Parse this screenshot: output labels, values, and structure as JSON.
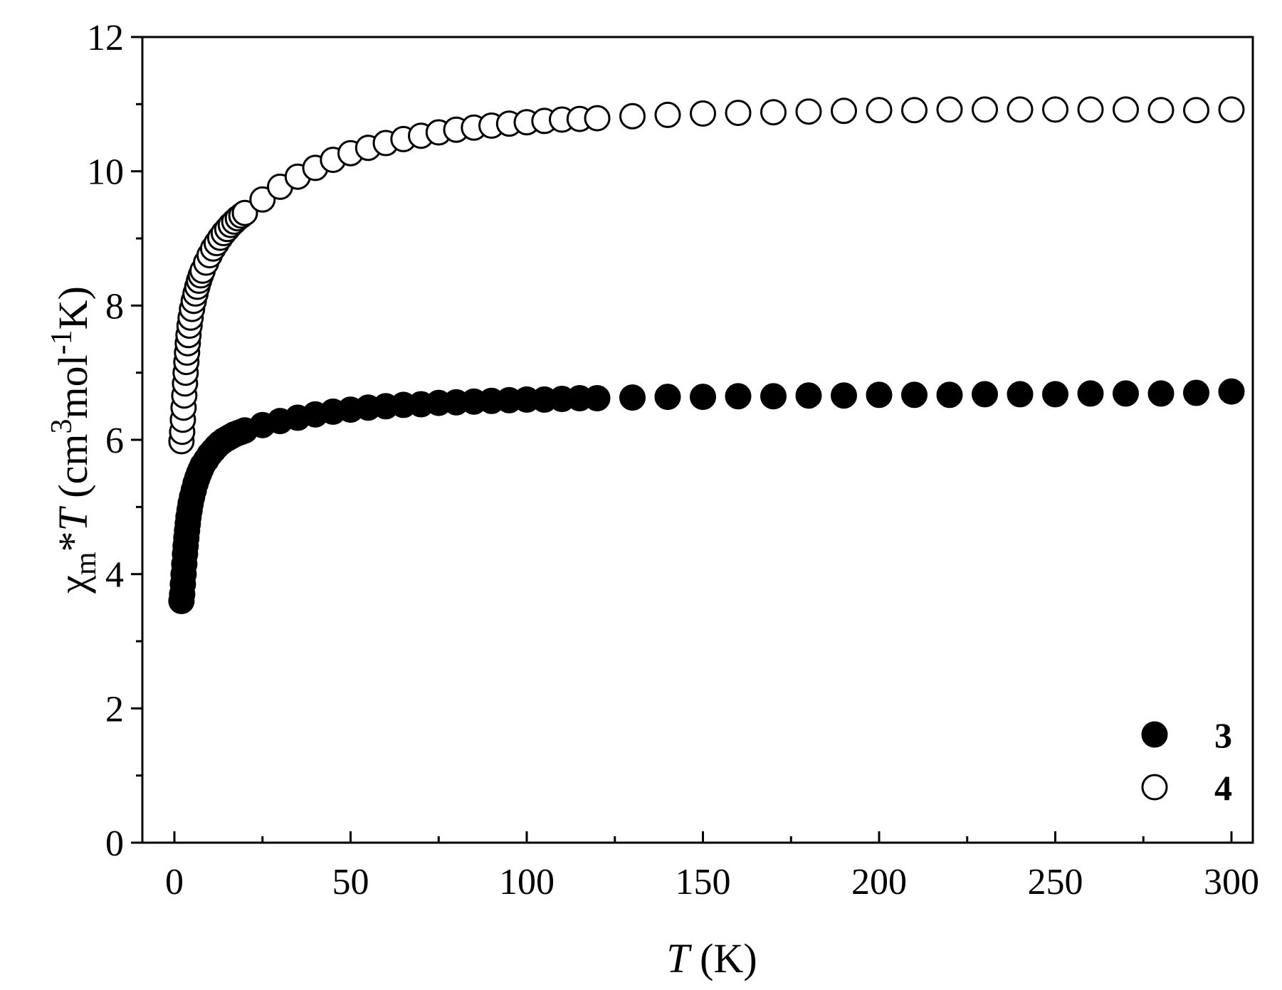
{
  "chart_data": {
    "type": "scatter",
    "xlabel": {
      "italic": "T",
      "rest": " (K)"
    },
    "ylabel": {
      "chi": "χ",
      "sub_m": "m",
      "star": "*",
      "T": "T",
      "open": " (cm",
      "sup3": "3",
      "mol": "mol",
      "supm1": "-1",
      "close": "K)"
    },
    "xlim": [
      0,
      300
    ],
    "ylim": [
      0,
      12
    ],
    "x_ticks": [
      0,
      50,
      100,
      150,
      200,
      250,
      300
    ],
    "x_tick_labels": [
      "0",
      "50",
      "100",
      "150",
      "200",
      "250",
      "300"
    ],
    "y_ticks": [
      0,
      2,
      4,
      6,
      8,
      10,
      12
    ],
    "y_tick_labels": [
      "0",
      "2",
      "4",
      "6",
      "8",
      "10",
      "12"
    ],
    "grid": false,
    "legend_position": "bottom-right",
    "series": [
      {
        "name": "3",
        "marker": "filled-circle",
        "x": [
          2,
          2.2,
          2.4,
          2.6,
          2.8,
          3,
          3.2,
          3.4,
          3.6,
          3.8,
          4,
          4.3,
          4.6,
          5,
          5.5,
          6,
          6.5,
          7,
          7.5,
          8,
          9,
          10,
          11,
          12,
          13,
          14,
          15,
          16,
          17,
          18,
          19,
          20,
          25,
          30,
          35,
          40,
          45,
          50,
          55,
          60,
          65,
          70,
          75,
          80,
          85,
          90,
          95,
          100,
          105,
          110,
          115,
          120,
          130,
          140,
          150,
          160,
          170,
          180,
          190,
          200,
          210,
          220,
          230,
          240,
          250,
          260,
          270,
          280,
          290,
          300
        ],
        "y": [
          3.6,
          3.7,
          3.85,
          4.0,
          4.15,
          4.3,
          4.42,
          4.54,
          4.65,
          4.75,
          4.85,
          4.95,
          5.05,
          5.15,
          5.25,
          5.35,
          5.43,
          5.5,
          5.56,
          5.62,
          5.7,
          5.78,
          5.84,
          5.9,
          5.95,
          5.99,
          6.02,
          6.05,
          6.08,
          6.1,
          6.12,
          6.14,
          6.22,
          6.28,
          6.33,
          6.38,
          6.42,
          6.45,
          6.48,
          6.5,
          6.52,
          6.53,
          6.55,
          6.56,
          6.57,
          6.58,
          6.59,
          6.6,
          6.6,
          6.61,
          6.62,
          6.62,
          6.63,
          6.64,
          6.64,
          6.65,
          6.65,
          6.66,
          6.66,
          6.67,
          6.67,
          6.67,
          6.68,
          6.68,
          6.68,
          6.69,
          6.69,
          6.69,
          6.7,
          6.72
        ]
      },
      {
        "name": "4",
        "marker": "open-circle",
        "x": [
          2,
          2.2,
          2.4,
          2.6,
          2.8,
          3,
          3.2,
          3.4,
          3.6,
          3.8,
          4,
          4.3,
          4.6,
          5,
          5.5,
          6,
          6.5,
          7,
          7.5,
          8,
          9,
          10,
          11,
          12,
          13,
          14,
          15,
          16,
          17,
          18,
          19,
          20,
          25,
          30,
          35,
          40,
          45,
          50,
          55,
          60,
          65,
          70,
          75,
          80,
          85,
          90,
          95,
          100,
          105,
          110,
          115,
          120,
          130,
          140,
          150,
          160,
          170,
          180,
          190,
          200,
          210,
          220,
          230,
          240,
          250,
          260,
          270,
          280,
          290,
          300
        ],
        "y": [
          5.98,
          6.12,
          6.3,
          6.48,
          6.66,
          6.84,
          7.0,
          7.16,
          7.3,
          7.44,
          7.56,
          7.7,
          7.82,
          7.95,
          8.07,
          8.18,
          8.28,
          8.37,
          8.45,
          8.52,
          8.64,
          8.75,
          8.85,
          8.93,
          9.01,
          9.08,
          9.14,
          9.2,
          9.25,
          9.3,
          9.34,
          9.38,
          9.58,
          9.77,
          9.92,
          10.05,
          10.17,
          10.27,
          10.35,
          10.42,
          10.48,
          10.53,
          10.58,
          10.62,
          10.65,
          10.68,
          10.71,
          10.73,
          10.75,
          10.77,
          10.78,
          10.79,
          10.82,
          10.84,
          10.86,
          10.87,
          10.88,
          10.89,
          10.9,
          10.91,
          10.91,
          10.92,
          10.92,
          10.92,
          10.92,
          10.92,
          10.92,
          10.91,
          10.91,
          10.92
        ]
      }
    ]
  }
}
